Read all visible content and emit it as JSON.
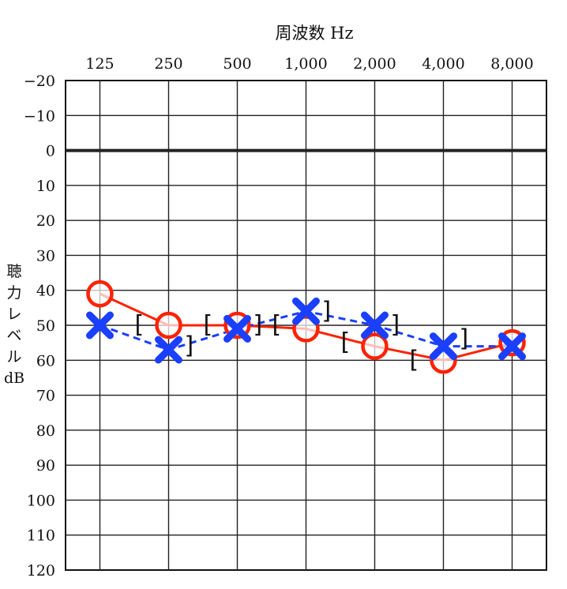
{
  "chart_data": {
    "type": "line",
    "title": "周波数 Hz",
    "ylabel_lines": [
      "聴",
      "力",
      "レ",
      "ベ",
      "ル",
      "dB"
    ],
    "x_categories": [
      "125",
      "250",
      "500",
      "1,000",
      "2,000",
      "4,000",
      "8,000"
    ],
    "y_ticks": [
      "−20",
      "−10",
      "0",
      "10",
      "20",
      "30",
      "40",
      "50",
      "60",
      "70",
      "80",
      "90",
      "100",
      "110",
      "120"
    ],
    "ylim": [
      -20,
      120
    ],
    "y_inverted": true,
    "grid": true,
    "series": [
      {
        "marker": "circle",
        "line": "solid",
        "color": "#ff2200",
        "values": [
          41,
          50,
          50,
          51,
          56,
          60,
          55
        ]
      },
      {
        "marker": "cross",
        "line": "dashed",
        "color": "#1a3fff",
        "values": [
          50,
          57,
          51,
          46,
          50,
          56,
          56
        ]
      }
    ],
    "bone_conduction": [
      {
        "bracket": "[",
        "x_index": 1,
        "value": 50
      },
      {
        "bracket": "]",
        "x_index": 1,
        "value": 56
      },
      {
        "bracket": "[",
        "x_index": 2,
        "value": 50
      },
      {
        "bracket": "]",
        "x_index": 2,
        "value": 50
      },
      {
        "bracket": "[",
        "x_index": 3,
        "value": 50
      },
      {
        "bracket": "]",
        "x_index": 3,
        "value": 46
      },
      {
        "bracket": "[",
        "x_index": 4,
        "value": 55
      },
      {
        "bracket": "]",
        "x_index": 4,
        "value": 50
      },
      {
        "bracket": "[",
        "x_index": 5,
        "value": 60
      },
      {
        "bracket": "]",
        "x_index": 5,
        "value": 54
      }
    ]
  }
}
